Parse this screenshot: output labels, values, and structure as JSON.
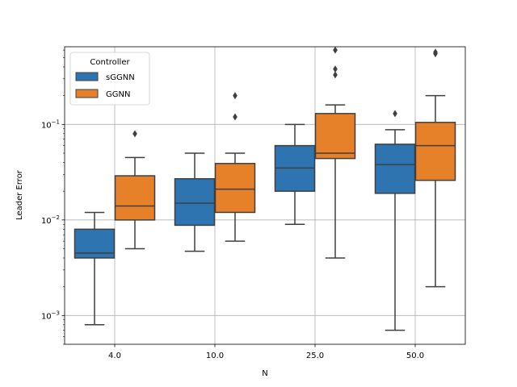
{
  "chart_data": {
    "type": "box",
    "xlabel": "N",
    "ylabel": "Leader Error",
    "yscale": "log",
    "ylim": [
      0.0005,
      0.65
    ],
    "y_ticks": [
      {
        "value": 0.001,
        "base": "10",
        "exp": "−3"
      },
      {
        "value": 0.01,
        "base": "10",
        "exp": "−2"
      },
      {
        "value": 0.1,
        "base": "10",
        "exp": "−1"
      }
    ],
    "categories": [
      "4.0",
      "10.0",
      "25.0",
      "50.0"
    ],
    "grid": true,
    "legend": {
      "title": "Controller",
      "position": "top-left"
    },
    "series": [
      {
        "name": "sGGNN",
        "color": "#2e74b0",
        "boxes": [
          {
            "whislo": 0.0008,
            "q1": 0.004,
            "med": 0.0045,
            "q3": 0.008,
            "whishi": 0.012,
            "fliers": []
          },
          {
            "whislo": 0.0047,
            "q1": 0.0088,
            "med": 0.015,
            "q3": 0.027,
            "whishi": 0.05,
            "fliers": []
          },
          {
            "whislo": 0.009,
            "q1": 0.02,
            "med": 0.035,
            "q3": 0.06,
            "whishi": 0.1,
            "fliers": []
          },
          {
            "whislo": 0.0007,
            "q1": 0.019,
            "med": 0.038,
            "q3": 0.062,
            "whishi": 0.088,
            "fliers": [
              0.13
            ]
          }
        ]
      },
      {
        "name": "GGNN",
        "color": "#e6812a",
        "boxes": [
          {
            "whislo": 0.005,
            "q1": 0.01,
            "med": 0.014,
            "q3": 0.029,
            "whishi": 0.045,
            "fliers": [
              0.08
            ]
          },
          {
            "whislo": 0.006,
            "q1": 0.012,
            "med": 0.021,
            "q3": 0.039,
            "whishi": 0.05,
            "fliers": [
              0.12,
              0.2
            ]
          },
          {
            "whislo": 0.004,
            "q1": 0.044,
            "med": 0.05,
            "q3": 0.13,
            "whishi": 0.16,
            "fliers": [
              0.33,
              0.38,
              0.6
            ]
          },
          {
            "whislo": 0.002,
            "q1": 0.026,
            "med": 0.06,
            "q3": 0.105,
            "whishi": 0.2,
            "fliers": [
              0.55,
              0.57
            ]
          }
        ]
      }
    ]
  }
}
